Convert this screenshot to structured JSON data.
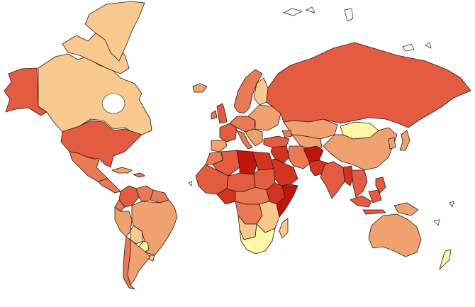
{
  "map": {
    "kind": "choropleth-world-map",
    "projection": "mercator",
    "palette": {
      "level_1": "#fff7a8",
      "level_2": "#f7c98e",
      "level_3": "#efa26f",
      "level_4": "#ea7a55",
      "level_5": "#e35b40",
      "level_6": "#d3341f",
      "level_7": "#c0140f",
      "water": "#ffffff",
      "border": "#2a1a14"
    },
    "regions": [
      {
        "name": "alaska",
        "level": 5
      },
      {
        "name": "canada",
        "level": 2
      },
      {
        "name": "greenland",
        "level": 2
      },
      {
        "name": "canadian-arctic-islands",
        "level": 2
      },
      {
        "name": "usa",
        "level": 5
      },
      {
        "name": "mexico",
        "level": 4
      },
      {
        "name": "central-america",
        "level": 4
      },
      {
        "name": "cuba",
        "level": 3
      },
      {
        "name": "caribbean",
        "level": 4
      },
      {
        "name": "colombia",
        "level": 5
      },
      {
        "name": "venezuela",
        "level": 4
      },
      {
        "name": "guianas",
        "level": 4
      },
      {
        "name": "ecuador",
        "level": 4
      },
      {
        "name": "peru",
        "level": 3
      },
      {
        "name": "brazil",
        "level": 3
      },
      {
        "name": "bolivia",
        "level": 2
      },
      {
        "name": "paraguay",
        "level": 1
      },
      {
        "name": "uruguay",
        "level": 2
      },
      {
        "name": "chile",
        "level": 4
      },
      {
        "name": "argentina",
        "level": 3
      },
      {
        "name": "iceland",
        "level": 3
      },
      {
        "name": "uk",
        "level": 5
      },
      {
        "name": "ireland",
        "level": 4
      },
      {
        "name": "scandinavia",
        "level": 4
      },
      {
        "name": "finland",
        "level": 2
      },
      {
        "name": "france",
        "level": 5
      },
      {
        "name": "iberia",
        "level": 3
      },
      {
        "name": "central-europe",
        "level": 4
      },
      {
        "name": "italy",
        "level": 4
      },
      {
        "name": "balkans",
        "level": 3
      },
      {
        "name": "eastern-europe",
        "level": 3
      },
      {
        "name": "russia",
        "level": 5
      },
      {
        "name": "kazakhstan",
        "level": 3
      },
      {
        "name": "central-asia",
        "level": 3
      },
      {
        "name": "mongolia",
        "level": 1
      },
      {
        "name": "china",
        "level": 3
      },
      {
        "name": "korea",
        "level": 3
      },
      {
        "name": "japan",
        "level": 3
      },
      {
        "name": "turkey",
        "level": 5
      },
      {
        "name": "caucasus",
        "level": 4
      },
      {
        "name": "iran",
        "level": 4
      },
      {
        "name": "iraq-syria",
        "level": 6
      },
      {
        "name": "arabia",
        "level": 6
      },
      {
        "name": "yemen",
        "level": 5
      },
      {
        "name": "afghanistan",
        "level": 7
      },
      {
        "name": "pakistan",
        "level": 6
      },
      {
        "name": "india",
        "level": 5
      },
      {
        "name": "myanmar",
        "level": 6
      },
      {
        "name": "southeast-asia",
        "level": 5
      },
      {
        "name": "indonesia",
        "level": 5
      },
      {
        "name": "philippines",
        "level": 5
      },
      {
        "name": "papua",
        "level": 3
      },
      {
        "name": "australia",
        "level": 3
      },
      {
        "name": "new-zealand",
        "level": 1
      },
      {
        "name": "morocco",
        "level": 4
      },
      {
        "name": "algeria",
        "level": 5
      },
      {
        "name": "libya",
        "level": 7
      },
      {
        "name": "egypt",
        "level": 6
      },
      {
        "name": "west-africa",
        "level": 5
      },
      {
        "name": "nigeria",
        "level": 6
      },
      {
        "name": "sahel",
        "level": 5
      },
      {
        "name": "sudan",
        "level": 5
      },
      {
        "name": "horn-of-africa",
        "level": 6
      },
      {
        "name": "somalia",
        "level": 7
      },
      {
        "name": "central-africa",
        "level": 4
      },
      {
        "name": "congo",
        "level": 4
      },
      {
        "name": "east-africa",
        "level": 2
      },
      {
        "name": "angola",
        "level": 2
      },
      {
        "name": "southern-africa",
        "level": 1
      },
      {
        "name": "madagascar",
        "level": 2
      }
    ]
  }
}
